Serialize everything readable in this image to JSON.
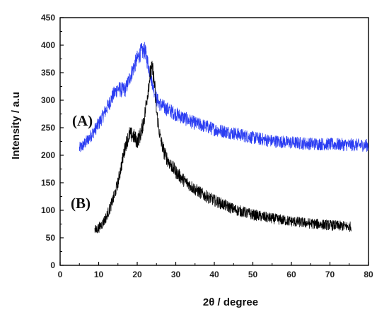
{
  "chart_data": {
    "type": "line",
    "title": "",
    "xlabel": "2θ / degree",
    "ylabel": "Intensity / a.u",
    "xlim": [
      0,
      80
    ],
    "ylim": [
      0,
      450
    ],
    "xticks": [
      0,
      10,
      20,
      30,
      40,
      50,
      60,
      70,
      80
    ],
    "yticks": [
      0,
      50,
      100,
      150,
      200,
      250,
      300,
      350,
      400,
      450
    ],
    "grid": false,
    "legend": "none",
    "annotations": [
      {
        "text": "(A)",
        "series": "A"
      },
      {
        "text": "(B)",
        "series": "B"
      }
    ],
    "series": [
      {
        "color": "#2b3df2",
        "noise": 10,
        "x": [
          5,
          6,
          7,
          8,
          9,
          10,
          11,
          12,
          13,
          14,
          15,
          16,
          17,
          18,
          19,
          20,
          21,
          22,
          23,
          24,
          25,
          26,
          27,
          28,
          30,
          32,
          35,
          38,
          40,
          45,
          50,
          55,
          60,
          65,
          70,
          75,
          80
        ],
        "y": [
          212,
          218,
          226,
          236,
          246,
          257,
          270,
          284,
          298,
          312,
          322,
          318,
          320,
          340,
          358,
          375,
          388,
          390,
          360,
          330,
          302,
          292,
          287,
          283,
          275,
          268,
          258,
          252,
          247,
          240,
          232,
          226,
          223,
          221,
          220,
          219,
          218
        ]
      },
      {
        "color": "#000000",
        "noise": 12,
        "x": [
          9,
          10,
          11,
          12,
          13,
          14,
          15,
          16,
          17,
          18,
          19,
          20,
          21,
          22,
          23,
          23.5,
          24,
          24.5,
          25,
          26,
          27,
          28,
          30,
          32,
          35,
          38,
          40,
          45,
          50,
          55,
          60,
          65,
          70,
          75.5
        ],
        "y": [
          63,
          68,
          76,
          88,
          105,
          125,
          150,
          185,
          220,
          238,
          235,
          225,
          240,
          275,
          330,
          352,
          355,
          330,
          280,
          230,
          205,
          190,
          170,
          155,
          138,
          125,
          118,
          102,
          92,
          85,
          80,
          76,
          73,
          70
        ]
      }
    ]
  }
}
